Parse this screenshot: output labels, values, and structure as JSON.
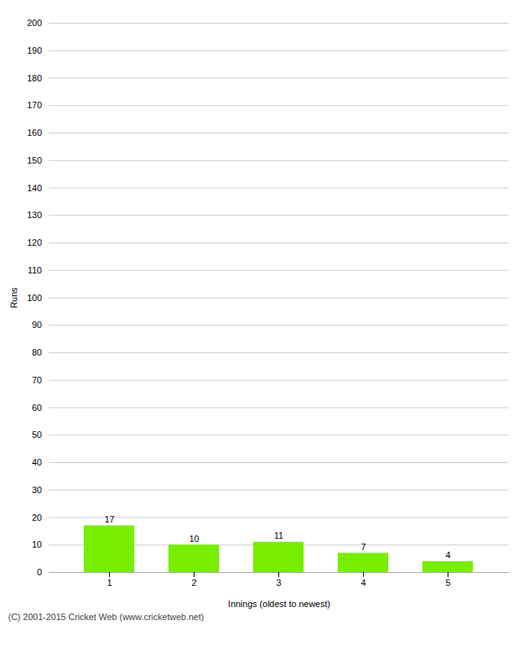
{
  "chart_data": {
    "type": "bar",
    "categories": [
      "1",
      "2",
      "3",
      "4",
      "5"
    ],
    "values": [
      17,
      10,
      11,
      7,
      4
    ],
    "color": "#77ee00",
    "xlabel": "Innings (oldest to newest)",
    "ylabel": "Runs",
    "ylim": [
      0,
      200
    ],
    "yticks": [
      0,
      10,
      20,
      30,
      40,
      50,
      60,
      70,
      80,
      90,
      100,
      110,
      120,
      130,
      140,
      150,
      160,
      170,
      180,
      190,
      200
    ],
    "grid": true,
    "data_labels": true,
    "footer": "(C) 2001-2015 Cricket Web (www.cricketweb.net)"
  }
}
